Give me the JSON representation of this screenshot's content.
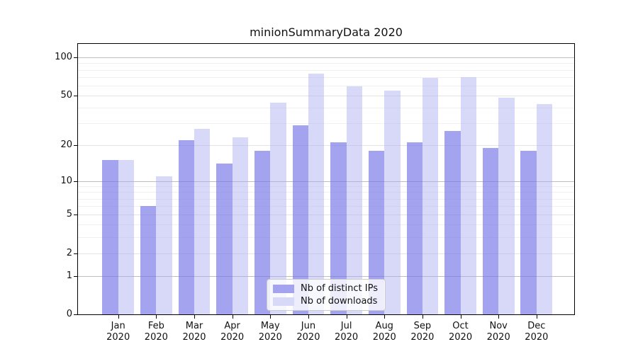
{
  "chart_data": {
    "type": "bar",
    "title": "minionSummaryData 2020",
    "categories": [
      "Jan 2020",
      "Feb 2020",
      "Mar 2020",
      "Apr 2020",
      "May 2020",
      "Jun 2020",
      "Jul 2020",
      "Aug 2020",
      "Sep 2020",
      "Oct 2020",
      "Nov 2020",
      "Dec 2020"
    ],
    "series": [
      {
        "name": "Nb of distinct IPs",
        "values": [
          15,
          6,
          22,
          14,
          18,
          29,
          21,
          18,
          21,
          26,
          19,
          18
        ],
        "fill": "rgba(118,118,232,0.67)",
        "solid": "#a3a3ef"
      },
      {
        "name": "Nb of downloads",
        "values": [
          15,
          11,
          27,
          23,
          44,
          75,
          59,
          55,
          69,
          70,
          48,
          43
        ],
        "fill": "rgba(168,168,240,0.45)",
        "solid": "#d8d8f8"
      }
    ],
    "yscale": "symlog",
    "ylim": [
      0,
      128
    ],
    "y_major_ticks": [
      0,
      1,
      2,
      5,
      10,
      20,
      50,
      100
    ],
    "y_decade_ticks": [
      1,
      10,
      100
    ],
    "y_minor_ticks": [
      3,
      4,
      6,
      7,
      8,
      9,
      30,
      40,
      60,
      70,
      80,
      90
    ],
    "grid": true,
    "legend_position": "lower center",
    "xlabel": "",
    "ylabel": ""
  },
  "colors": {
    "background": "#ffffff",
    "axis": "#000000",
    "grid_decade": "#bdbdbd",
    "grid_labeled": "#e3e3e3",
    "grid_minor": "#f0f0f0",
    "legend_border": "#cccccc",
    "text": "#111111"
  }
}
